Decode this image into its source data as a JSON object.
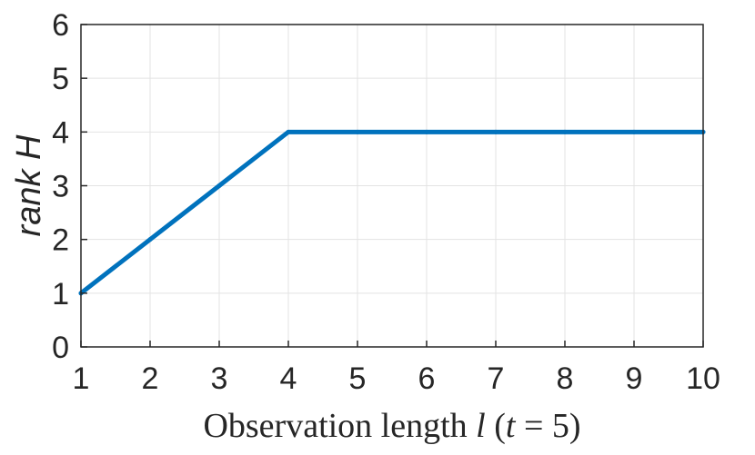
{
  "chart_data": {
    "type": "line",
    "xlabel": "Observation length l (t = 5)",
    "ylabel": "rank H",
    "xlim": [
      1,
      10
    ],
    "ylim": [
      0,
      6
    ],
    "xticks": [
      1,
      2,
      3,
      4,
      5,
      6,
      7,
      8,
      9,
      10
    ],
    "yticks": [
      0,
      1,
      2,
      3,
      4,
      5,
      6
    ],
    "grid": true,
    "series": [
      {
        "color": "#0072bd",
        "x": [
          1,
          2,
          3,
          4,
          5,
          6,
          7,
          8,
          9,
          10
        ],
        "y": [
          1,
          2,
          3,
          4,
          4,
          4,
          4,
          4,
          4,
          4
        ]
      }
    ]
  }
}
